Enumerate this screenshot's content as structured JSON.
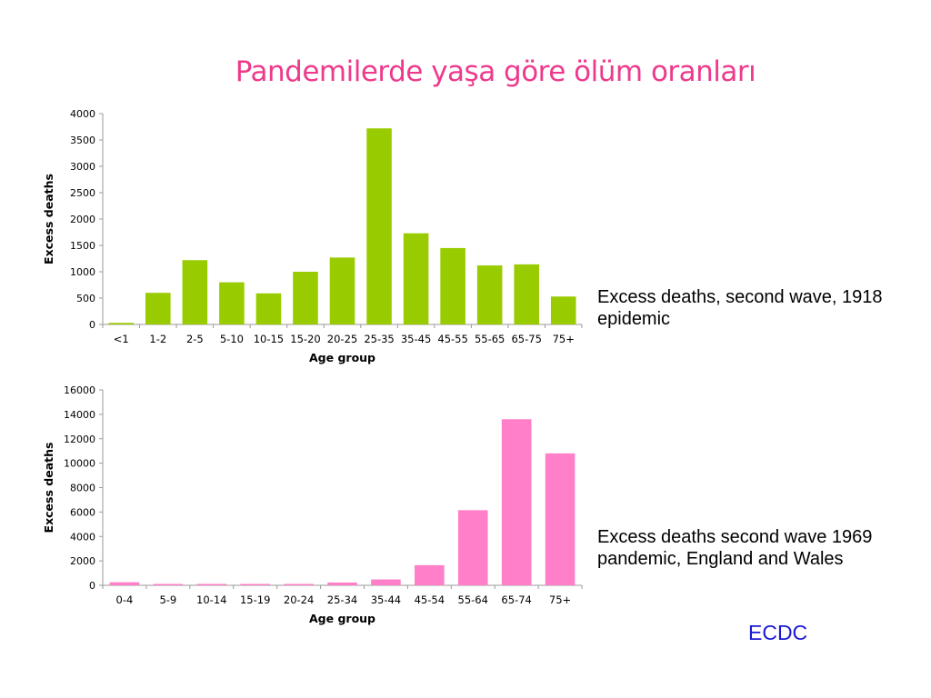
{
  "slide": {
    "title": "Pandemilerde yaşa göre ölüm oranları",
    "title_color": "#ee3a8c",
    "caption_1918": "Excess deaths, second wave, 1918 epidemic",
    "caption_1969": "Excess deaths second wave 1969 pandemic, England and Wales",
    "source": "ECDC",
    "source_color": "#1a1ad6"
  },
  "chart_data": [
    {
      "type": "bar",
      "categories": [
        "<1",
        "1-2",
        "2-5",
        "5-10",
        "10-15",
        "15-20",
        "20-25",
        "25-35",
        "35-45",
        "45-55",
        "55-65",
        "65-75",
        "75+"
      ],
      "values": [
        30,
        600,
        1220,
        800,
        590,
        1000,
        1270,
        3720,
        1730,
        1450,
        1120,
        1140,
        530
      ],
      "title": "",
      "xlabel": "Age group",
      "ylabel": "Excess deaths",
      "ylim": [
        0,
        4000
      ],
      "yticks": [
        0,
        500,
        1000,
        1500,
        2000,
        2500,
        3000,
        3500,
        4000
      ],
      "color": "#99cc00",
      "grid": false
    },
    {
      "type": "bar",
      "categories": [
        "0-4",
        "5-9",
        "10-14",
        "15-19",
        "20-24",
        "25-34",
        "35-44",
        "45-54",
        "55-64",
        "65-74",
        "75+"
      ],
      "values": [
        250,
        20,
        20,
        20,
        100,
        230,
        480,
        1650,
        6150,
        13600,
        10800
      ],
      "title": "",
      "xlabel": "Age group",
      "ylabel": "Excess deaths",
      "ylim": [
        0,
        16000
      ],
      "yticks": [
        0,
        2000,
        4000,
        6000,
        8000,
        10000,
        12000,
        14000,
        16000
      ],
      "color": "#ff7fc8",
      "grid": false
    }
  ]
}
